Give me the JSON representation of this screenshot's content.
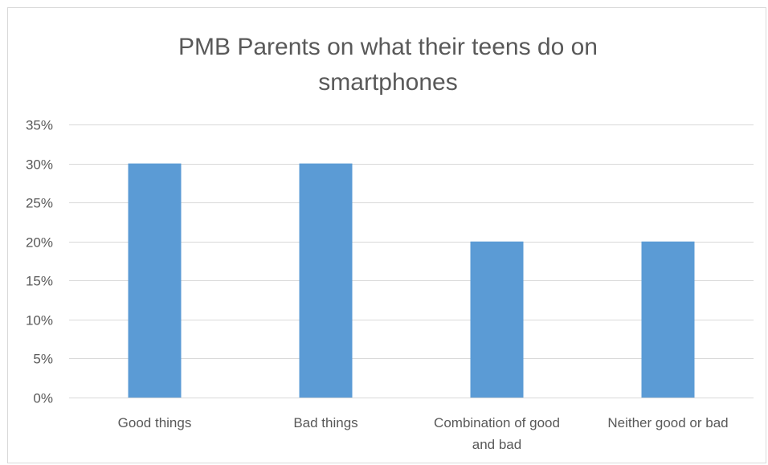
{
  "chart_data": {
    "type": "bar",
    "title_lines": [
      "PMB Parents on what their teens do on",
      "smartphones"
    ],
    "categories": [
      "Good things",
      "Bad things",
      "Combination of good and bad",
      "Neither good or bad"
    ],
    "category_label_lines": [
      [
        "Good things"
      ],
      [
        "Bad things"
      ],
      [
        "Combination of good",
        "and bad"
      ],
      [
        "Neither good or bad"
      ]
    ],
    "values": [
      0.3,
      0.3,
      0.2,
      0.2
    ],
    "yticks": [
      0,
      0.05,
      0.1,
      0.15,
      0.2,
      0.25,
      0.3,
      0.35
    ],
    "ytick_labels": [
      "0%",
      "5%",
      "10%",
      "15%",
      "20%",
      "25%",
      "30%",
      "35%"
    ],
    "ylim": [
      0,
      0.35
    ],
    "xlabel": "",
    "ylabel": "",
    "grid": true,
    "legend": "none",
    "bar_color": "#5b9bd5",
    "grid_color": "#d9d9d9",
    "text_color": "#595959"
  }
}
